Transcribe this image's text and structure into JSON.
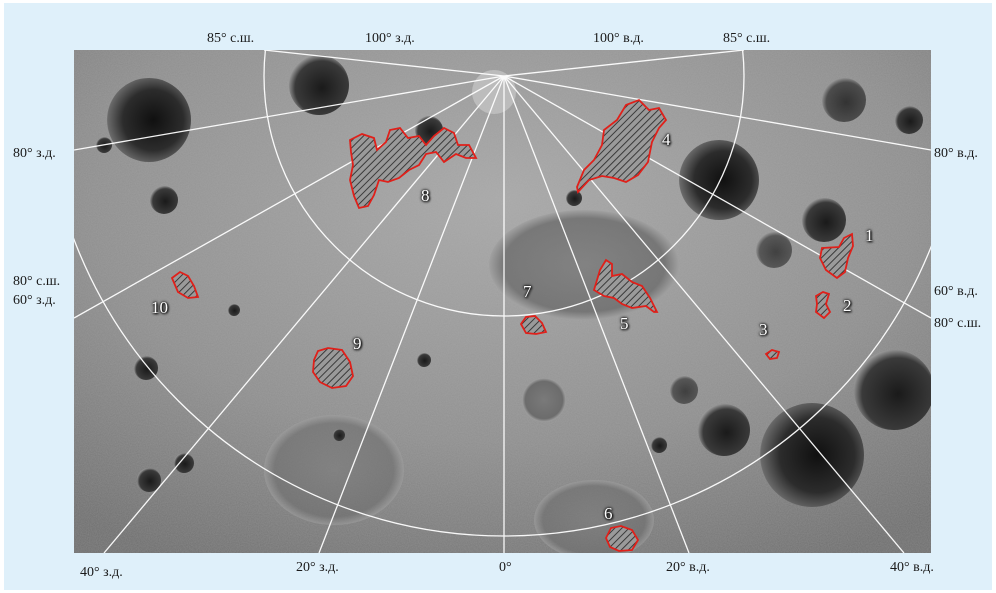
{
  "colors": {
    "frame_background": "#dff0fa",
    "grid_lines": "#ffffff",
    "site_outline": "#e0201a",
    "site_hatch": "#e0201a"
  },
  "labels": {
    "top_85n_left": "85° с.ш.",
    "top_100w": "100° з.д.",
    "top_100e": "100° в.д.",
    "top_85n_right": "85° с.ш.",
    "left_80w": "80° з.д.",
    "left_80n": "80° с.ш.",
    "left_60w": "60° з.д.",
    "right_80e": "80° в.д.",
    "right_60e": "60° в.д.",
    "right_80n": "80° с.ш.",
    "bottom_40w": "40° з.д.",
    "bottom_20w": "20° з.д.",
    "bottom_0": "0°",
    "bottom_20e": "20° в.д.",
    "bottom_40e": "40° в.д."
  },
  "sites": [
    {
      "id": "1",
      "label": "1"
    },
    {
      "id": "2",
      "label": "2"
    },
    {
      "id": "3",
      "label": "3"
    },
    {
      "id": "4",
      "label": "4"
    },
    {
      "id": "5",
      "label": "5"
    },
    {
      "id": "6",
      "label": "6"
    },
    {
      "id": "7",
      "label": "7"
    },
    {
      "id": "8",
      "label": "8"
    },
    {
      "id": "9",
      "label": "9"
    },
    {
      "id": "10",
      "label": "10"
    }
  ]
}
